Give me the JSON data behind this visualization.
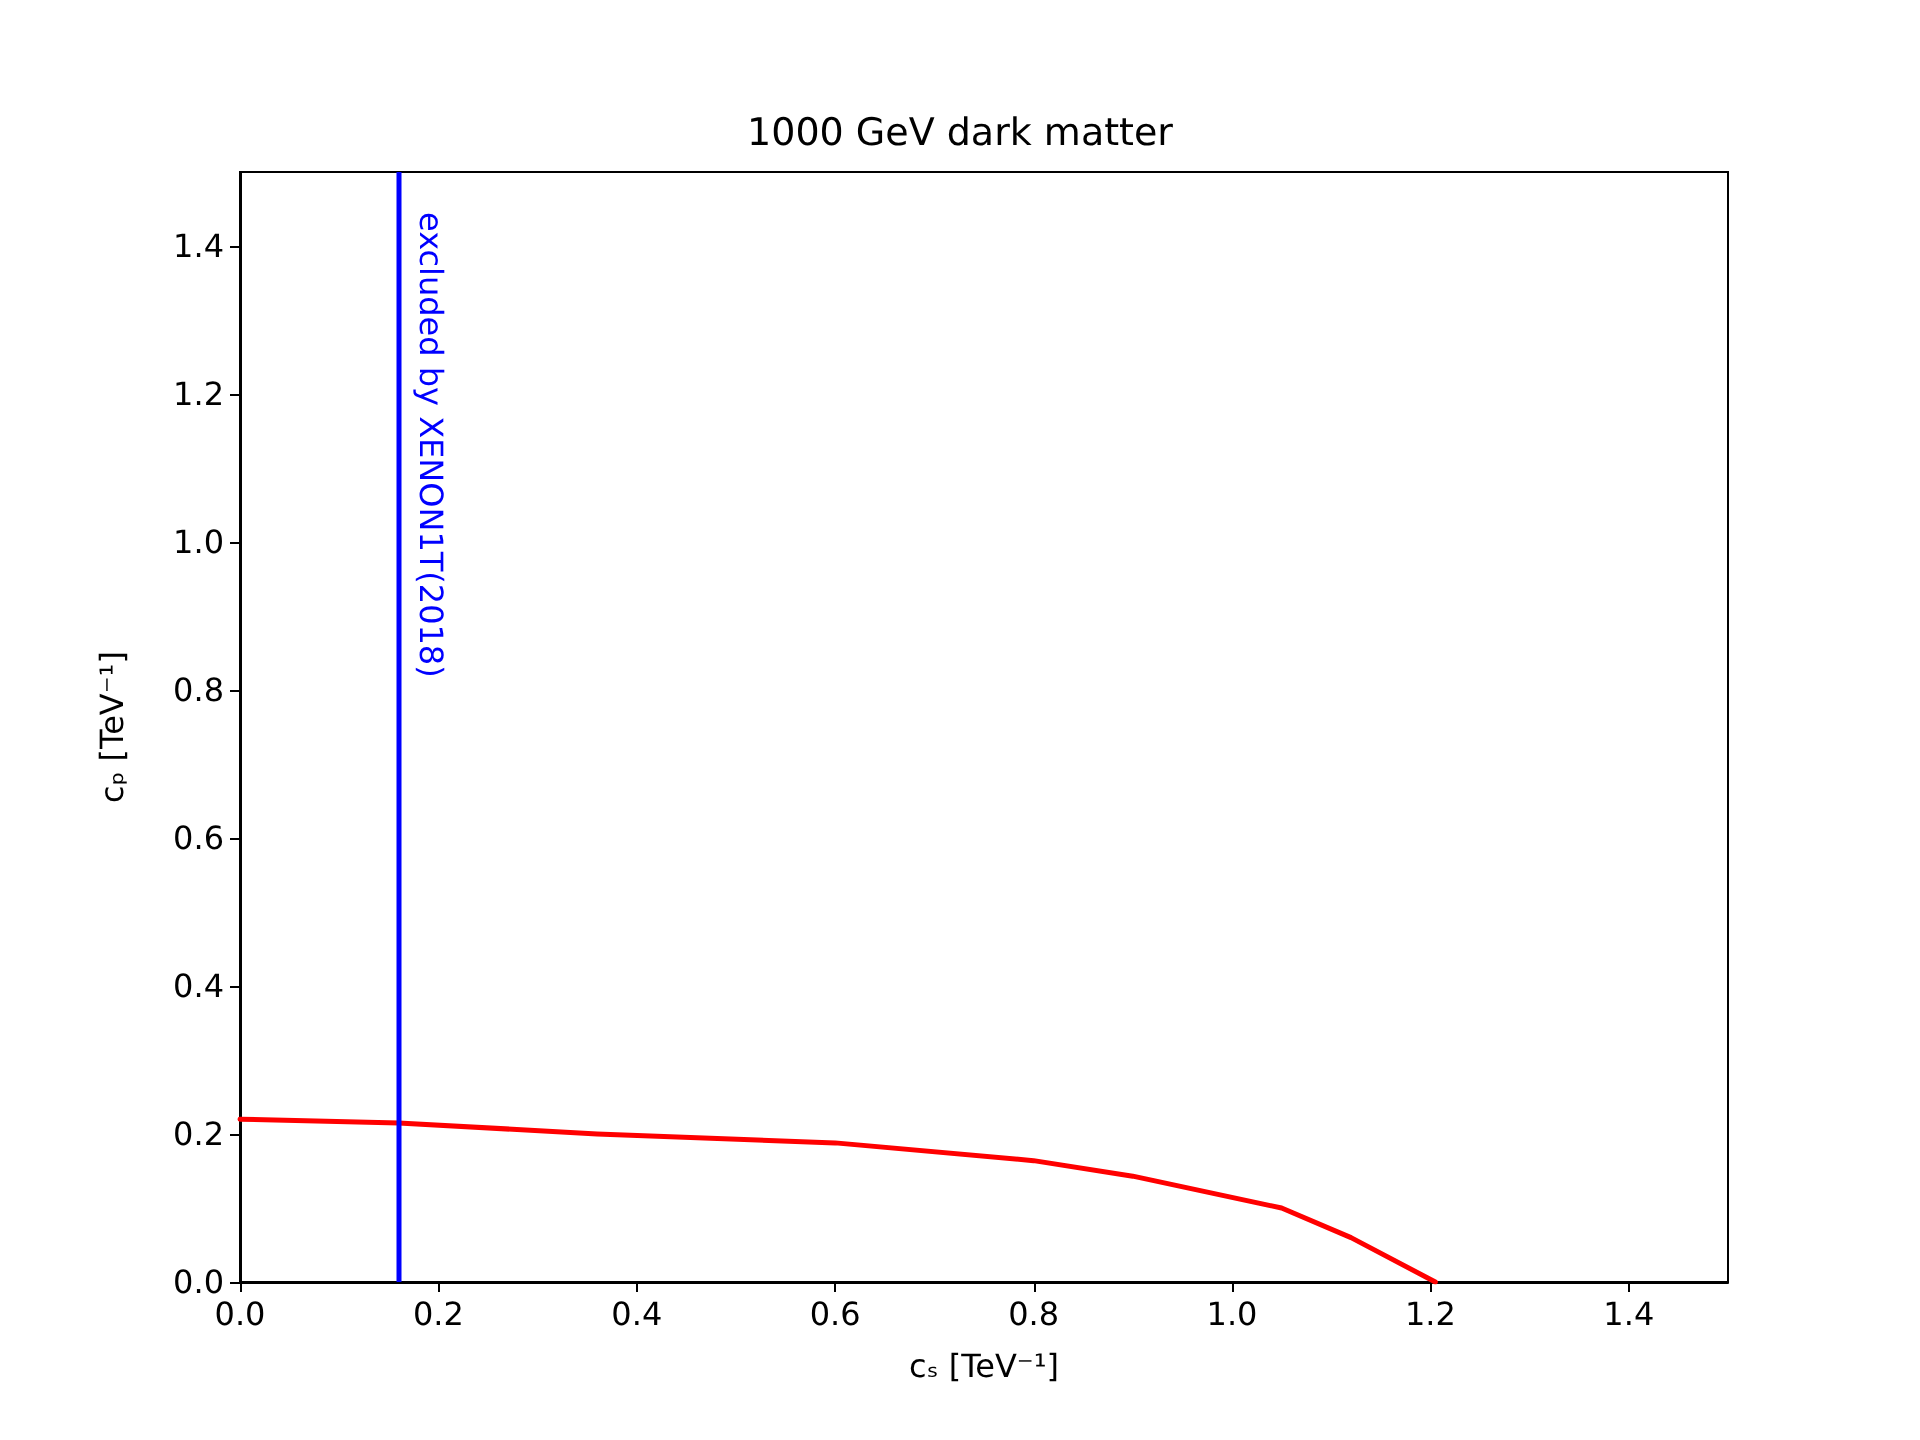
{
  "chart_data": {
    "type": "line",
    "title": "1000 GeV dark matter",
    "xlabel": "cₛ [TeV⁻¹]",
    "ylabel": "cₚ [TeV⁻¹]",
    "x": [
      0,
      0.16,
      0.36,
      0.6,
      0.8,
      0.9,
      1.05,
      1.12,
      1.205
    ],
    "series": [
      {
        "color": "#ff0000",
        "values": [
          0.22,
          0.215,
          0.2,
          0.188,
          0.164,
          0.143,
          0.1,
          0.06,
          0
        ]
      }
    ],
    "xlim": [
      0,
      1.5
    ],
    "ylim": [
      0,
      1.5
    ],
    "xticks": [
      {
        "value": 0,
        "label": "0.0"
      },
      {
        "value": 0.2,
        "label": "0.2"
      },
      {
        "value": 0.4,
        "label": "0.4"
      },
      {
        "value": 0.6,
        "label": "0.6"
      },
      {
        "value": 0.8,
        "label": "0.8"
      },
      {
        "value": 1.0,
        "label": "1.0"
      },
      {
        "value": 1.2,
        "label": "1.2"
      },
      {
        "value": 1.4,
        "label": "1.4"
      }
    ],
    "yticks": [
      {
        "value": 0,
        "label": "0.0"
      },
      {
        "value": 0.2,
        "label": "0.2"
      },
      {
        "value": 0.4,
        "label": "0.4"
      },
      {
        "value": 0.6,
        "label": "0.6"
      },
      {
        "value": 0.8,
        "label": "0.8"
      },
      {
        "value": 1.0,
        "label": "1.0"
      },
      {
        "value": 1.2,
        "label": "1.2"
      },
      {
        "value": 1.4,
        "label": "1.4"
      }
    ],
    "ref_lines": [
      {
        "axis": "x",
        "value": 0.158,
        "label": "excluded by XENON1T(2018)",
        "color": "#0000ff"
      }
    ],
    "grid": false,
    "marker": "none",
    "line_style": "solid"
  }
}
